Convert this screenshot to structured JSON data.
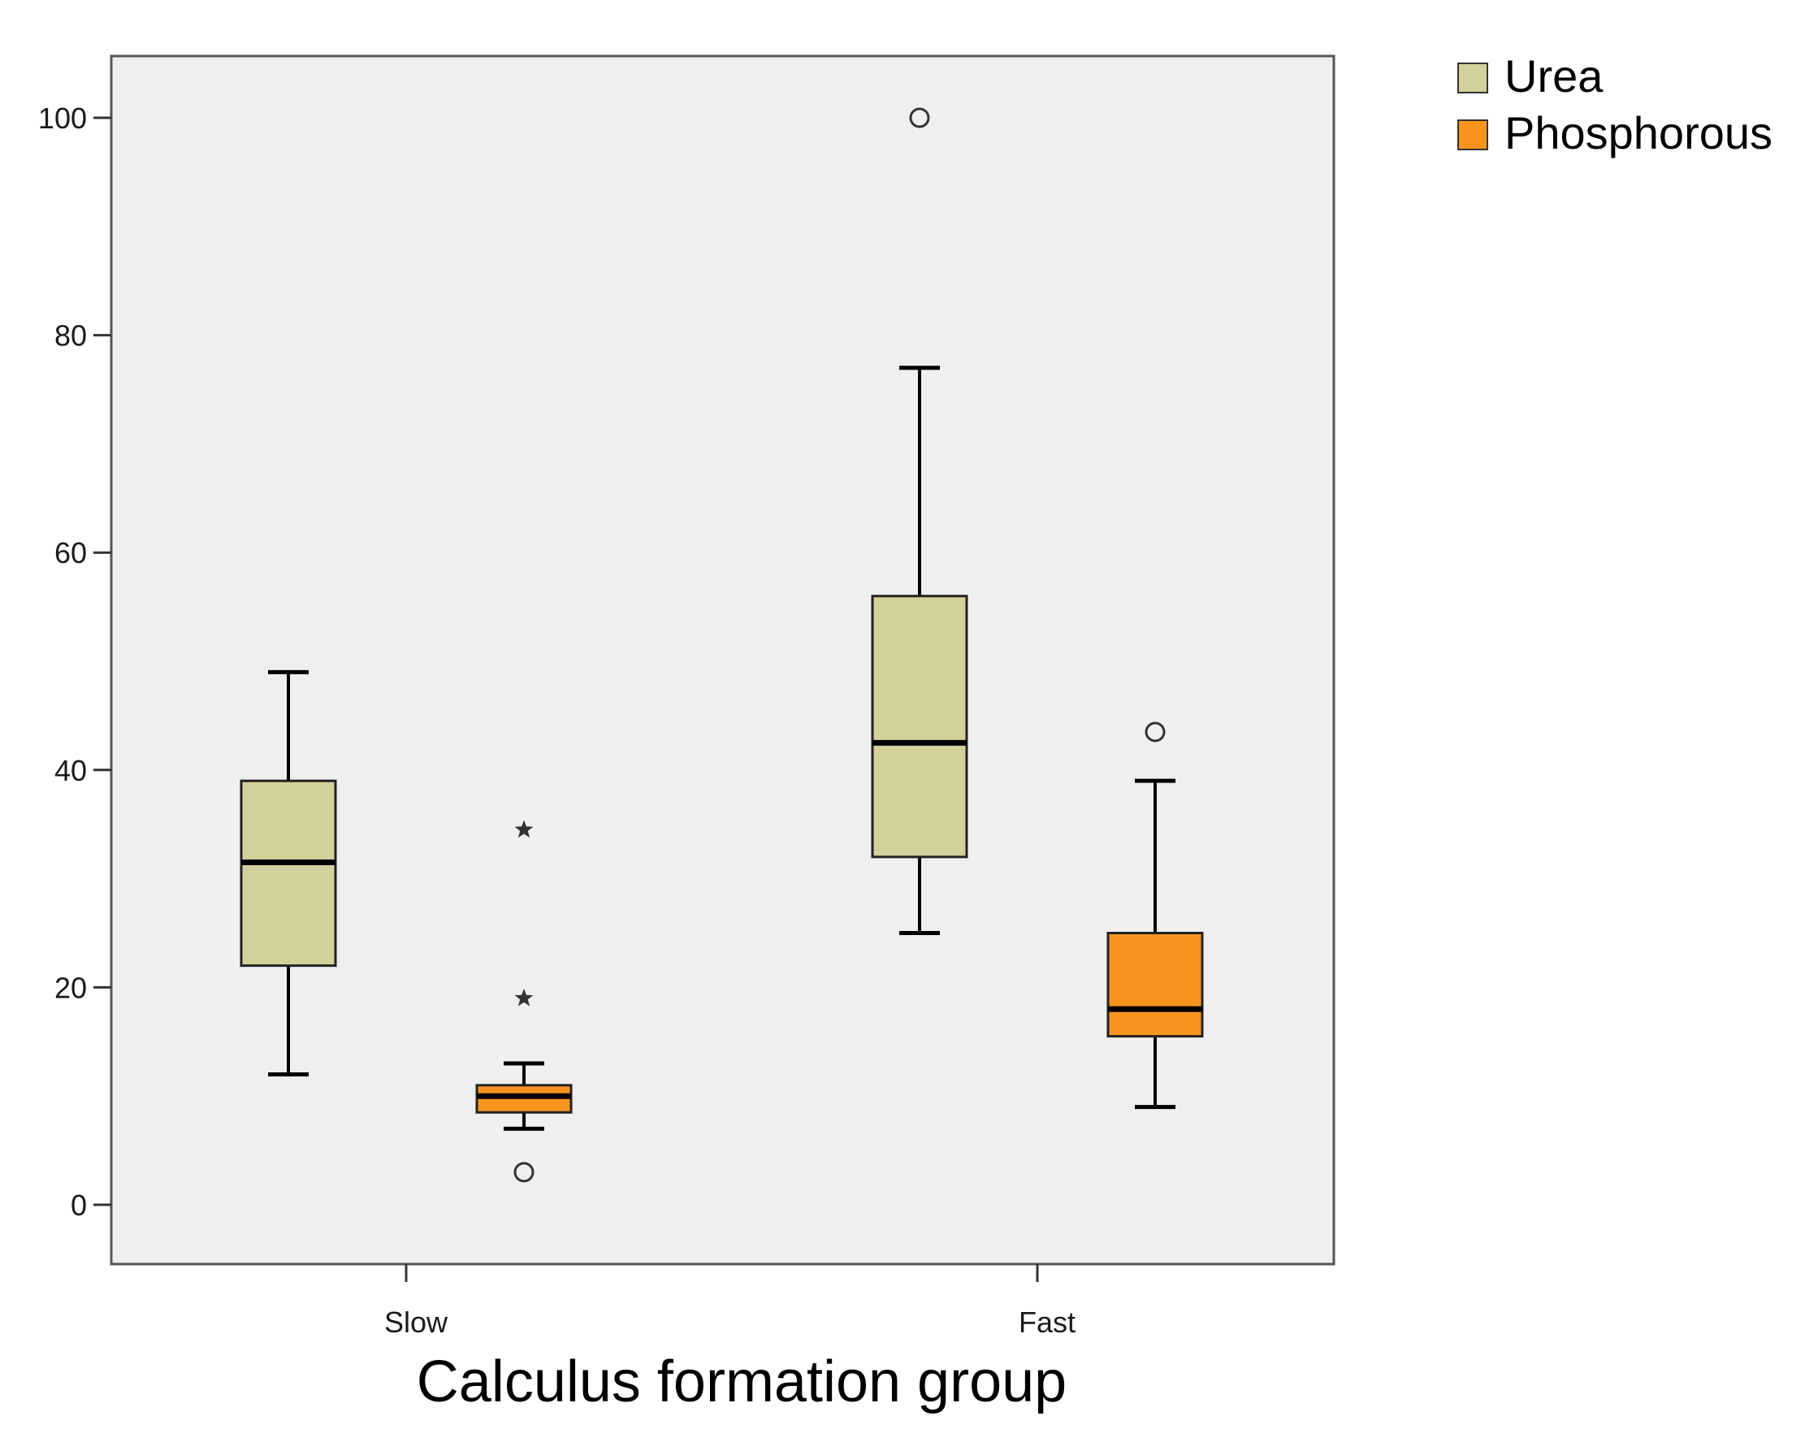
{
  "chart_data": {
    "type": "boxplot",
    "title": "",
    "xlabel": "Calculus formation group",
    "ylabel": "",
    "ylim": [
      -5.5,
      105.5
    ],
    "yticks": [
      0,
      20,
      40,
      60,
      80,
      100
    ],
    "ytick_labels": [
      "0",
      "20",
      "40",
      "60",
      "80",
      "100"
    ],
    "categories": [
      "Slow",
      "Fast"
    ],
    "legend_position": "top-right, outside plot",
    "series": [
      {
        "name": "Urea",
        "color": "#d4d09c",
        "boxes": [
          {
            "category": "Slow",
            "whisker_low": 12,
            "q1": 22,
            "median": 31.5,
            "q3": 39,
            "whisker_high": 49,
            "outliers": [],
            "extremes": []
          },
          {
            "category": "Fast",
            "whisker_low": 25,
            "q1": 32,
            "median": 42.5,
            "q3": 56,
            "whisker_high": 77,
            "outliers": [
              100
            ],
            "extremes": []
          }
        ]
      },
      {
        "name": "Phosphorous",
        "color": "#f7941d",
        "boxes": [
          {
            "category": "Slow",
            "whisker_low": 7,
            "q1": 8.5,
            "median": 10,
            "q3": 11,
            "whisker_high": 13,
            "outliers": [
              3
            ],
            "extremes": [
              19,
              34.5
            ]
          },
          {
            "category": "Fast",
            "whisker_low": 9,
            "q1": 15.5,
            "median": 18,
            "q3": 25,
            "whisker_high": 39,
            "outliers": [
              43.5
            ],
            "extremes": []
          }
        ]
      }
    ]
  },
  "colors": {
    "plot_background": "#efefef",
    "frame": "#555555",
    "whisker": "#000000"
  }
}
